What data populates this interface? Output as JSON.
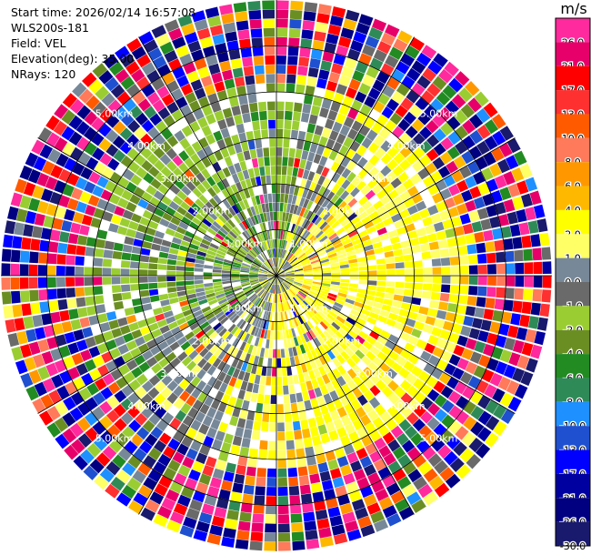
{
  "header": {
    "start_time": "Start time: 2026/02/14 16:57:08",
    "station": "WLS200s-181",
    "field": "Field: VEL",
    "elevation": "Elevation(deg): 35.00",
    "nrays": "NRays: 120"
  },
  "colorbar": {
    "unit": "m/s",
    "levels": [
      {
        "label": "26.0",
        "color": "#ff2a9d"
      },
      {
        "label": "21.0",
        "color": "#e8006a"
      },
      {
        "label": "17.0",
        "color": "#ff0000"
      },
      {
        "label": "13.0",
        "color": "#ff3030"
      },
      {
        "label": "10.0",
        "color": "#ff5a00"
      },
      {
        "label": "8.0",
        "color": "#ff7a5a"
      },
      {
        "label": "6.0",
        "color": "#ff9800"
      },
      {
        "label": "4.0",
        "color": "#ffb800"
      },
      {
        "label": "2.0",
        "color": "#ffff00"
      },
      {
        "label": "1.0",
        "color": "#ffff66"
      },
      {
        "label": "0.0",
        "color": "#778899"
      },
      {
        "label": "-1.0",
        "color": "#6a6a6a"
      },
      {
        "label": "-2.0",
        "color": "#9acd32"
      },
      {
        "label": "-4.0",
        "color": "#6b8e23"
      },
      {
        "label": "-6.0",
        "color": "#228b22"
      },
      {
        "label": "-8.0",
        "color": "#2e8b57"
      },
      {
        "label": "-10.0",
        "color": "#1e90ff"
      },
      {
        "label": "-13.0",
        "color": "#1f50d0"
      },
      {
        "label": "-17.0",
        "color": "#0000ff"
      },
      {
        "label": "-21.0",
        "color": "#0000a0"
      },
      {
        "label": "-26.0",
        "color": "#000080"
      },
      {
        "label": "-30.0",
        "color": "#19196e"
      }
    ]
  },
  "chart_data": {
    "type": "heatmap",
    "projection": "polar-ppi",
    "nrays": 120,
    "gates": 30,
    "max_range_km": 6,
    "range_rings_km": [
      1,
      2,
      3,
      4,
      5
    ],
    "ring_labels": [
      "1.00km",
      "2.00km",
      "3.00km",
      "4.00km",
      "5.00km"
    ],
    "spoke_angles_deg": [
      0,
      30,
      60,
      90,
      120,
      150,
      180,
      210,
      240,
      270,
      300,
      330
    ],
    "velocity_unit": "m/s",
    "value_range": [
      -30,
      26
    ],
    "pattern": "near-range toward (+) east/southeast, away (-) north/west; noisy beyond ~4.2 km"
  }
}
